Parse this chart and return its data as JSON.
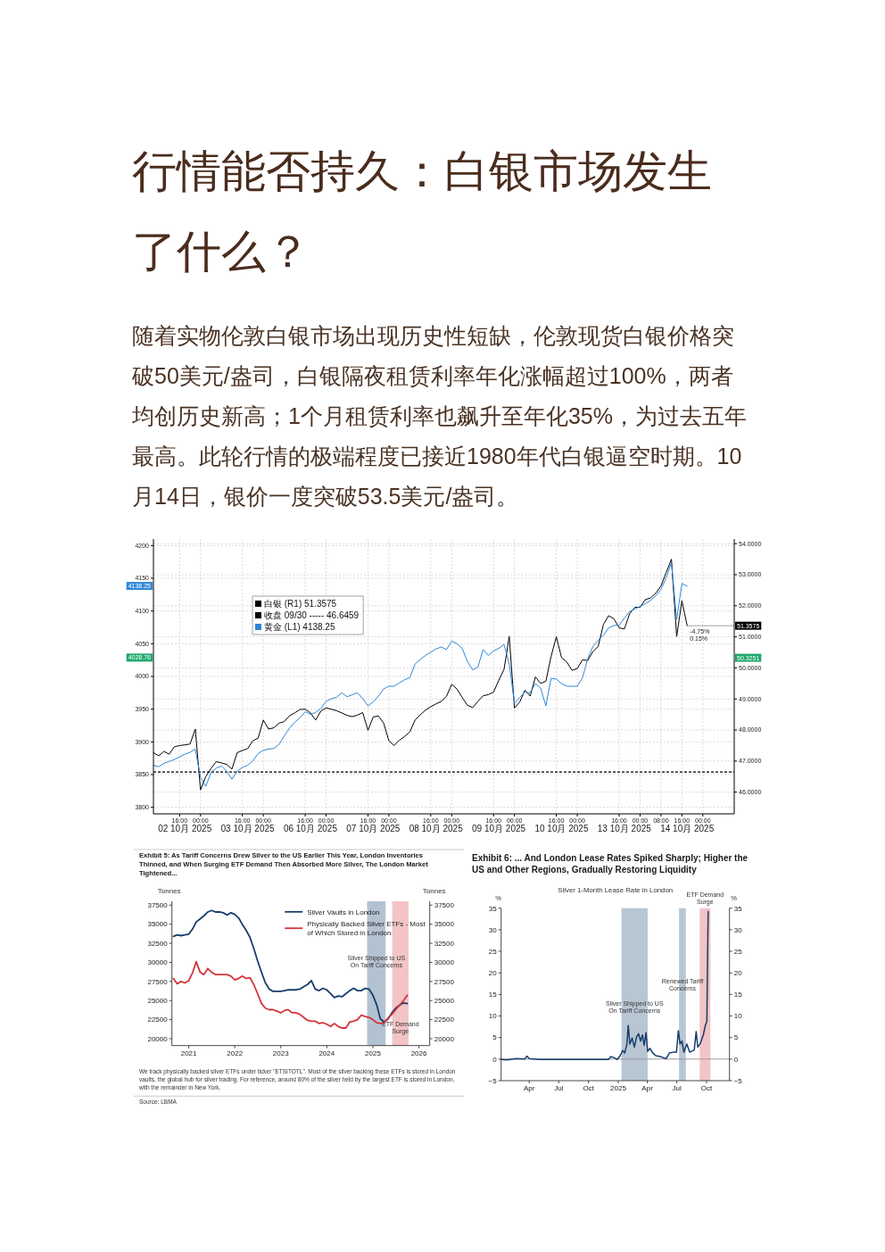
{
  "chart_data": [
    {
      "type": "line",
      "title": "行情能否持久：白银市场发生了什么？",
      "subtitle": "随着实物伦敦白银市场出现历史性短缺，伦敦现货白银价格突破50美元/盎司，白银隔夜租赁利率年化涨幅超过100%，两者均创历史新高；1个月租赁利率也飙升至年化35%，为过去五年最高。此轮行情的极端程度已接近1980年代白银逼空时期。10月14日，银价一度突破53.5美元/盎司。",
      "categories": [
        null,
        null,
        null,
        null,
        null,
        "16:00",
        "02 10月 2025",
        null,
        null,
        "00:00",
        null,
        null,
        null,
        null,
        null,
        null,
        null,
        "16:00",
        "03 10月 2025",
        null,
        null,
        "00:00",
        null,
        null,
        null,
        null,
        null,
        null,
        null,
        "16:00",
        "06 10月 2025",
        null,
        null,
        "00:00",
        null,
        null,
        null,
        null,
        null,
        null,
        null,
        "16:00",
        "07 10月 2025",
        null,
        null,
        "00:00",
        null,
        null,
        null,
        null,
        null,
        null,
        null,
        "16:00",
        "08 10月 2025",
        null,
        null,
        "00:00",
        null,
        null,
        null,
        null,
        null,
        null,
        null,
        "16:00",
        "09 10月 2025",
        null,
        null,
        "00:00",
        null,
        null,
        null,
        null,
        null,
        null,
        null,
        "16:00",
        "10 10月 2025",
        null,
        null,
        "00:00",
        null,
        null,
        null,
        null,
        null,
        null,
        null,
        "16:00",
        "13 10月 2025",
        null,
        null,
        "00:00",
        null,
        null,
        null,
        "08:00",
        null,
        null,
        null,
        "16:00",
        "14 10月 2025",
        null,
        null,
        "00:00",
        null,
        null,
        null,
        null,
        null,
        null
      ],
      "ylim": [
        3790,
        4210
      ],
      "yticks": [
        3800,
        3850,
        3900,
        3950,
        4000,
        {
          "value": 4028.76,
          "label": "4028.76"
        },
        4050,
        4100,
        {
          "value": 4138.25,
          "label": "4138.25"
        },
        4150,
        4200
      ],
      "y2lim": [
        45.3,
        54.15
      ],
      "y2ticks": [
        {
          "value": 46,
          "label": "46.0000"
        },
        {
          "value": 47,
          "label": "47.0000"
        },
        {
          "value": 48,
          "label": "48.0000"
        },
        {
          "value": 49,
          "label": "49.0000"
        },
        {
          "value": 50,
          "label": "50.0000"
        },
        {
          "value": 50.3251,
          "label": "50.3251"
        },
        {
          "value": 51,
          "label": "51.0000"
        },
        {
          "value": 52,
          "label": "52.0000"
        },
        {
          "value": 53,
          "label": "53.0000"
        },
        {
          "value": 54,
          "label": "54.0000"
        }
      ],
      "grid": true,
      "legend": "top left",
      "series": [
        {
          "name": "白银 (R1) 51.3575",
          "color": "#000000",
          "axis": "y2",
          "values": [
            47.27,
            47.17,
            47.31,
            47.22,
            47.46,
            47.5,
            47.52,
            47.55,
            48.03,
            46.07,
            46.5,
            46.76,
            46.98,
            46.94,
            46.89,
            46.74,
            47.27,
            47.34,
            47.4,
            47.65,
            47.74,
            48.32,
            48.03,
            48.07,
            48.22,
            48.27,
            48.46,
            48.55,
            48.66,
            48.67,
            48.55,
            48.32,
            48.61,
            48.71,
            48.67,
            48.62,
            48.55,
            48.47,
            48.43,
            48.48,
            48.56,
            47.99,
            48.42,
            48.45,
            48.22,
            47.65,
            47.5,
            47.67,
            47.79,
            47.94,
            48.32,
            48.49,
            48.64,
            48.75,
            48.84,
            48.92,
            49.08,
            49.47,
            49.32,
            49.05,
            48.8,
            48.72,
            48.92,
            49.1,
            49.14,
            49.22,
            49.6,
            49.95,
            51.01,
            48.71,
            48.9,
            49.28,
            49.09,
            49.71,
            49.5,
            49.57,
            50.37,
            51.0,
            50.33,
            50.19,
            49.92,
            49.98,
            50.26,
            50.24,
            50.53,
            50.69,
            51.4,
            51.68,
            51.58,
            51.29,
            51.25,
            51.74,
            51.95,
            51.95,
            52.2,
            52.25,
            52.4,
            52.64,
            53.07,
            53.5,
            51.01,
            52.16,
            51.36,
            null,
            null,
            null,
            null,
            null,
            null,
            null,
            null,
            null
          ]
        },
        {
          "name": "黄金 (L1) 4138.25",
          "color": "#2f86d8",
          "values": [
            3864,
            3862,
            3867,
            3870,
            3873,
            3877,
            3881,
            3884,
            3889,
            3846,
            3832,
            3853,
            3860,
            3863,
            3855,
            3843,
            3855,
            3861,
            3864,
            3871,
            3882,
            3887,
            3889,
            3890,
            3896,
            3909,
            3921,
            3930,
            3937,
            3946,
            3942,
            3945,
            3951,
            3962,
            3966,
            3968,
            3975,
            3969,
            3972,
            3975,
            3966,
            3955,
            3961,
            3970,
            3981,
            3985,
            3985,
            3990,
            3995,
            3998,
            4019,
            4026,
            4032,
            4037,
            4042,
            4045,
            4041,
            4054,
            4050,
            4043,
            4023,
            4010,
            4014,
            4041,
            4032,
            4039,
            4043,
            4049,
            4019,
            3959,
            3968,
            3976,
            3975,
            3989,
            3982,
            3955,
            3997,
            3996,
            3989,
            3985,
            3985,
            3985,
            3998,
            4027,
            4046,
            4055,
            4063,
            4074,
            4078,
            4078,
            4089,
            4099,
            4103,
            4107,
            4111,
            4116,
            4123,
            4133,
            4151,
            4174,
            4087,
            4142,
            4138,
            null,
            null,
            null,
            null,
            null,
            null,
            null,
            null,
            null
          ]
        }
      ],
      "ref_lines": [
        {
          "axis": "y2",
          "value": 46.6459,
          "label": "收盘 09/30 ----- 46.6459",
          "line_style": "dashed",
          "color": "#000000"
        },
        {
          "axis": "y2",
          "value": 51.3575,
          "label": "51.3575",
          "line_style": "solid",
          "color": "#8a8a8a"
        }
      ],
      "annotations": [
        "-4.75%",
        "0.15%"
      ]
    },
    {
      "type": "line",
      "title": "Exhibit 5: As Tariff Concerns Drew Silver to the US Earlier This Year, London Inventories Thinned, and When Surging ETF Demand Then Absorbed More Silver, The London Market Tightened...",
      "ylabel": "Tonnes",
      "y2label": "Tonnes",
      "x": [
        "2020-09",
        "2020-10",
        "2020-11",
        "2020-12",
        "2021-01",
        "2021-02",
        "2021-03",
        "2021-04",
        "2021-05",
        "2021-06",
        "2021-07",
        "2021-08",
        "2021-09",
        "2021-10",
        "2021-11",
        "2021-12",
        "2022-01",
        "2022-02",
        "2022-03",
        "2022-04",
        "2022-05",
        "2022-06",
        "2022-07",
        "2022-08",
        "2022-09",
        "2022-10",
        "2022-11",
        "2022-12",
        "2023-01",
        "2023-02",
        "2023-03",
        "2023-04",
        "2023-05",
        "2023-06",
        "2023-07",
        "2023-08",
        "2023-09",
        "2023-10",
        "2023-11",
        "2023-12",
        "2024-01",
        "2024-02",
        "2024-03",
        "2024-04",
        "2024-05",
        "2024-06",
        "2024-07",
        "2024-08",
        "2024-09",
        "2024-10",
        "2024-11",
        "2024-12",
        "2025-01",
        "2025-02",
        "2025-03",
        "2025-04",
        "2025-05",
        "2025-06",
        "2025-07",
        "2025-08",
        "2025-09",
        "2025-10"
      ],
      "series": [
        {
          "name": "Silver Vaults in London",
          "color": "#173d6b",
          "values": [
            33400,
            33600,
            33500,
            33600,
            33700,
            34400,
            35300,
            35700,
            36100,
            36600,
            36800,
            36600,
            36600,
            36500,
            36200,
            36500,
            36300,
            35800,
            35000,
            34200,
            33300,
            31800,
            30200,
            28700,
            27300,
            26500,
            26200,
            26200,
            26200,
            26300,
            26400,
            26400,
            26400,
            26500,
            26800,
            27100,
            27600,
            26500,
            26300,
            26600,
            26400,
            25900,
            25400,
            25600,
            25500,
            25900,
            26300,
            26600,
            26300,
            26300,
            26600,
            26500,
            25700,
            24400,
            22600,
            22200,
            22600,
            23400,
            24000,
            24400,
            24700,
            24600
          ]
        },
        {
          "name": "Physically Backed Silver ETFs - Most of Which Stored in London",
          "color": "#d2353b",
          "values": [
            27900,
            27200,
            27500,
            27300,
            27600,
            28700,
            30100,
            28700,
            28400,
            29200,
            28700,
            28400,
            28400,
            28400,
            28400,
            28200,
            27700,
            27900,
            28200,
            27900,
            28000,
            27100,
            25900,
            24600,
            24000,
            23800,
            23800,
            23600,
            23400,
            23700,
            23800,
            23400,
            23400,
            23200,
            22800,
            22400,
            22300,
            22300,
            22000,
            22100,
            21900,
            21600,
            22000,
            21600,
            21400,
            21400,
            22200,
            22300,
            22500,
            23100,
            22900,
            22800,
            22500,
            22100,
            22000,
            22100,
            22700,
            23200,
            23800,
            24400,
            25000,
            25700
          ]
        }
      ],
      "xlim": [
        "2020-08-20",
        "2026-03-28"
      ],
      "xticks": [
        {
          "value": "2021-01-01",
          "label": "2021"
        },
        {
          "value": "2022-01-01",
          "label": "2022"
        },
        {
          "value": "2023-01-01",
          "label": "2023"
        },
        {
          "value": "2024-01-01",
          "label": "2024"
        },
        {
          "value": "2025-01-01",
          "label": "2025"
        },
        {
          "value": "2026-01-01",
          "label": "2026"
        }
      ],
      "ylim": [
        19100,
        38000
      ],
      "yticks": [
        20000,
        22500,
        25000,
        27500,
        30000,
        32500,
        35000,
        37500
      ],
      "y2lim": [
        19100,
        38000
      ],
      "y2ticks": [
        20000,
        22500,
        25000,
        27500,
        30000,
        32500,
        35000,
        37500
      ],
      "legend": "top right",
      "bands": [
        {
          "axis": "x",
          "from": "2024-11-16",
          "to": "2025-04-12",
          "label": "Silver Shipped to US On Tariff Concerns",
          "color": "#b3c2d0"
        },
        {
          "axis": "x",
          "from": "2025-06-03",
          "to": "2025-10-11",
          "label": "ETF Demand Surge",
          "color": "#f2c4c6"
        }
      ],
      "annotations": [
        "We track physically backed silver ETFs under ticker \"ETSITOTL\". Most of the silver backing these ETFs is stored in London vaults, the global hub for silver trading. For reference, around 80% of the silver held by the largest ETF is stored in London, with the remainder in New York.",
        "Source: LBMA"
      ]
    },
    {
      "type": "line",
      "title": "Exhibit 6: ... And London Lease Rates Spiked Sharply; Higher the US and Other Regions, Gradually Restoring Liquidity",
      "subtitle": "Silver 1-Month Lease Rate in London",
      "ylabel": "%",
      "y2label": "%",
      "x": [
        "2024-01-05",
        "2024-01-23",
        "2024-02-20",
        "2024-03-18",
        "2024-03-25",
        "2024-04-01",
        "2024-05-03",
        "2024-06-09",
        "2024-07-16",
        "2024-08-22",
        "2024-09-28",
        "2024-11-04",
        "2024-12-02",
        "2024-12-09",
        "2024-12-20",
        "2024-12-29",
        "2025-01-07",
        "2025-01-15",
        "2025-01-21",
        "2025-01-28",
        "2025-02-01",
        "2025-02-06",
        "2025-02-13",
        "2025-02-20",
        "2025-02-27",
        "2025-03-05",
        "2025-03-11",
        "2025-03-17",
        "2025-03-22",
        "2025-03-28",
        "2025-04-02",
        "2025-04-09",
        "2025-04-18",
        "2025-04-27",
        "2025-05-11",
        "2025-05-29",
        "2025-06-08",
        "2025-06-21",
        "2025-06-30",
        "2025-07-06",
        "2025-07-11",
        "2025-07-17",
        "2025-07-23",
        "2025-08-01",
        "2025-08-10",
        "2025-08-24",
        "2025-08-30",
        "2025-09-04",
        "2025-09-11",
        "2025-09-21",
        "2025-09-28",
        "2025-10-02",
        "2025-10-06"
      ],
      "values": [
        -0.1,
        -0.2,
        0.1,
        0.0,
        0.7,
        0.1,
        -0.1,
        -0.1,
        -0.1,
        -0.1,
        -0.1,
        -0.1,
        -0.1,
        0.6,
        0.3,
        -0.1,
        0.8,
        2.0,
        1.4,
        3.5,
        7.8,
        3.5,
        4.9,
        2.8,
        5.2,
        5.9,
        4.2,
        5.6,
        3.2,
        6.1,
        1.8,
        2.5,
        1.4,
        0.8,
        0.6,
        0.1,
        1.4,
        1.6,
        1.6,
        6.6,
        3.5,
        4.2,
        1.6,
        3.5,
        1.6,
        2.1,
        6.4,
        2.8,
        3.5,
        5.6,
        8.0,
        8.7,
        34.2
      ],
      "color": "#173d6b",
      "xlim": [
        "2024-01-05",
        "2025-12-11"
      ],
      "xticks": [
        {
          "value": "2024-04-01",
          "label": "Apr"
        },
        {
          "value": "2024-07-01",
          "label": "Jul"
        },
        {
          "value": "2024-10-01",
          "label": "Oct"
        },
        {
          "value": "2025-01-01",
          "label": "2025"
        },
        {
          "value": "2025-04-01",
          "label": "Apr"
        },
        {
          "value": "2025-07-01",
          "label": "Jul"
        },
        {
          "value": "2025-10-01",
          "label": "Oct"
        }
      ],
      "ylim": [
        -5,
        35
      ],
      "yticks": [
        {
          "value": -5,
          "label": "−5"
        },
        0,
        5,
        10,
        15,
        20,
        25,
        30,
        35
      ],
      "y2lim": [
        -5,
        35
      ],
      "y2ticks": [
        {
          "value": -5,
          "label": "−5"
        },
        0,
        5,
        10,
        15,
        20,
        25,
        30,
        35
      ],
      "ref_lines": [
        {
          "axis": "y",
          "value": 0,
          "color": "#9a9a9a",
          "line_style": "solid"
        }
      ],
      "bands": [
        {
          "axis": "x",
          "from": "2025-01-11",
          "to": "2025-04-02",
          "label": "Silver Shipped to US On Tariff Concerns",
          "color": "#b8c6d3"
        },
        {
          "axis": "x",
          "from": "2025-07-08",
          "to": "2025-07-29",
          "label": "Renewed Tariff Concerns",
          "color": "#b8c6d3"
        },
        {
          "axis": "x",
          "from": "2025-09-10",
          "to": "2025-10-13",
          "label": "ETF Demand Surge",
          "color": "#f2c4c6"
        }
      ]
    }
  ]
}
